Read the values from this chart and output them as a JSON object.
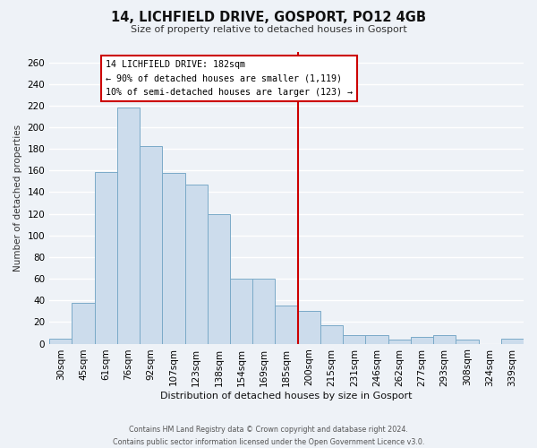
{
  "title": "14, LICHFIELD DRIVE, GOSPORT, PO12 4GB",
  "subtitle": "Size of property relative to detached houses in Gosport",
  "xlabel": "Distribution of detached houses by size in Gosport",
  "ylabel": "Number of detached properties",
  "bar_labels": [
    "30sqm",
    "45sqm",
    "61sqm",
    "76sqm",
    "92sqm",
    "107sqm",
    "123sqm",
    "138sqm",
    "154sqm",
    "169sqm",
    "185sqm",
    "200sqm",
    "215sqm",
    "231sqm",
    "246sqm",
    "262sqm",
    "277sqm",
    "293sqm",
    "308sqm",
    "324sqm",
    "339sqm"
  ],
  "bar_heights": [
    5,
    38,
    159,
    218,
    183,
    158,
    147,
    120,
    60,
    60,
    35,
    30,
    17,
    8,
    8,
    4,
    6,
    8,
    4,
    0,
    5
  ],
  "bar_color": "#ccdcec",
  "bar_edge_color": "#7aaac8",
  "vline_color": "#cc0000",
  "vline_x": 10,
  "annotation_title": "14 LICHFIELD DRIVE: 182sqm",
  "annotation_line1": "← 90% of detached houses are smaller (1,119)",
  "annotation_line2": "10% of semi-detached houses are larger (123) →",
  "annotation_box_color": "white",
  "annotation_box_edge_color": "#cc0000",
  "ylim": [
    0,
    270
  ],
  "yticks": [
    0,
    20,
    40,
    60,
    80,
    100,
    120,
    140,
    160,
    180,
    200,
    220,
    240,
    260
  ],
  "footnote1": "Contains HM Land Registry data © Crown copyright and database right 2024.",
  "footnote2": "Contains public sector information licensed under the Open Government Licence v3.0.",
  "background_color": "#eef2f7",
  "grid_color": "#ffffff"
}
